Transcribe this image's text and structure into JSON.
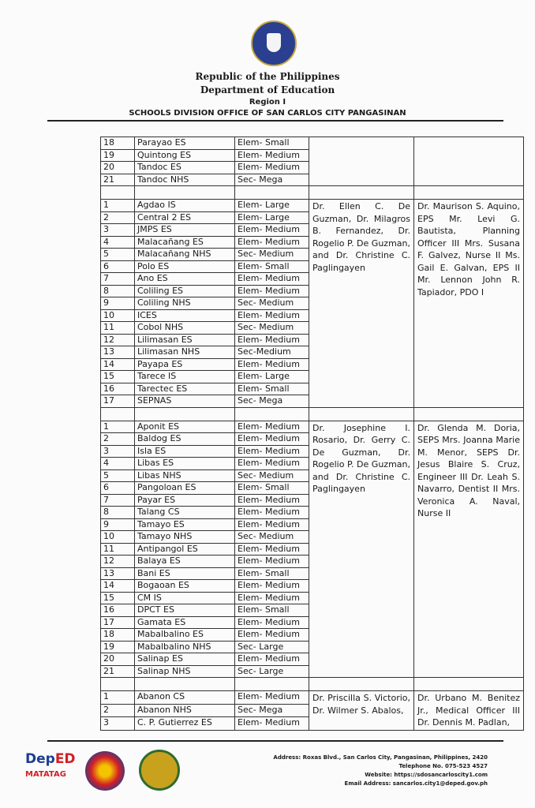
{
  "header": {
    "line1": "Republic of the Philippines",
    "line2": "Department of Education",
    "region": "Region I",
    "office": "SCHOOLS DIVISION OFFICE OF SAN CARLOS CITY PANGASINAN"
  },
  "groups": [
    {
      "rows": [
        [
          "18",
          "Parayao ES",
          "Elem- Small"
        ],
        [
          "19",
          "Quintong ES",
          "Elem- Medium"
        ],
        [
          "20",
          "Tandoc ES",
          "Elem- Medium"
        ],
        [
          "21",
          "Tandoc NHS",
          "Sec- Mega"
        ]
      ],
      "panel": "",
      "team": ""
    },
    {
      "rows": [
        [
          "1",
          "Agdao IS",
          "Elem- Large"
        ],
        [
          "2",
          "Central 2 ES",
          "Elem- Large"
        ],
        [
          "3",
          "JMPS ES",
          "Elem- Medium"
        ],
        [
          "4",
          "Malacañang ES",
          "Elem- Medium"
        ],
        [
          "5",
          "Malacañang NHS",
          "Sec- Medium"
        ],
        [
          "6",
          "Polo ES",
          "Elem- Small"
        ],
        [
          "7",
          "Ano ES",
          "Elem- Medium"
        ],
        [
          "8",
          "Coliling ES",
          "Elem- Medium"
        ],
        [
          "9",
          "Coliling NHS",
          "Sec- Medium"
        ],
        [
          "10",
          "ICES",
          "Elem- Medium"
        ],
        [
          "11",
          "Cobol NHS",
          "Sec- Medium"
        ],
        [
          "12",
          "Lilimasan ES",
          "Elem- Medium"
        ],
        [
          "13",
          "Lilimasan NHS",
          "Sec-Medium"
        ],
        [
          "14",
          "Payapa ES",
          "Elem- Medium"
        ],
        [
          "15",
          "Tarece IS",
          "Elem- Large"
        ],
        [
          "16",
          "Tarectec ES",
          "Elem- Small"
        ],
        [
          "17",
          "SEPNAS",
          "Sec- Mega"
        ]
      ],
      "panel": "Dr. Ellen C. De Guzman, Dr. Milagros B. Fernandez, Dr. Rogelio P. De Guzman, and Dr. Christine C. Paglingayen",
      "team": "Dr. Maurison S. Aquino, EPS Mr. Levi G. Bautista, Planning Officer III Mrs. Susana F. Galvez, Nurse II Ms. Gail E. Galvan, EPS II Mr. Lennon John R. Tapiador, PDO I"
    },
    {
      "rows": [
        [
          "1",
          "Aponit ES",
          "Elem- Medium"
        ],
        [
          "2",
          "Baldog ES",
          "Elem- Medium"
        ],
        [
          "3",
          "Isla ES",
          "Elem- Medium"
        ],
        [
          "4",
          "Libas ES",
          "Elem- Medium"
        ],
        [
          "5",
          "Libas NHS",
          "Sec- Medium"
        ],
        [
          "6",
          "Pangoloan ES",
          "Elem- Small"
        ],
        [
          "7",
          "Payar ES",
          "Elem- Medium"
        ],
        [
          "8",
          "Talang CS",
          "Elem- Medium"
        ],
        [
          "9",
          "Tamayo ES",
          "Elem- Medium"
        ],
        [
          "10",
          "Tamayo NHS",
          "Sec- Medium"
        ],
        [
          "11",
          "Antipangol ES",
          "Elem- Medium"
        ],
        [
          "12",
          "Balaya ES",
          "Elem- Medium"
        ],
        [
          "13",
          "Bani ES",
          "Elem- Small"
        ],
        [
          "14",
          "Bogaoan ES",
          "Elem- Medium"
        ],
        [
          "15",
          "CM IS",
          "Elem- Medium"
        ],
        [
          "16",
          "DPCT ES",
          "Elem- Small"
        ],
        [
          "17",
          "Gamata ES",
          "Elem- Medium"
        ],
        [
          "18",
          "Mabalbalino ES",
          "Elem- Medium"
        ],
        [
          "19",
          "Mabalbalino NHS",
          "Sec- Large"
        ],
        [
          "20",
          "Salinap ES",
          "Elem- Medium"
        ],
        [
          "21",
          "Salinap NHS",
          "Sec- Large"
        ]
      ],
      "panel": "Dr. Josephine I. Rosario, Dr. Gerry C. De Guzman, Dr. Rogelio P. De Guzman, and Dr. Christine C. Paglingayen",
      "team": "Dr. Glenda M. Doria, SEPS Mrs. Joanna Marie M. Menor, SEPS Dr. Jesus Blaire S. Cruz, Engineer III Dr. Leah S. Navarro, Dentist II Mrs. Veronica A. Naval, Nurse II"
    },
    {
      "rows": [
        [
          "1",
          "Abanon CS",
          "Elem- Medium"
        ],
        [
          "2",
          "Abanon NHS",
          "Sec- Mega"
        ],
        [
          "3",
          "C. P. Gutierrez ES",
          "Elem- Medium"
        ]
      ],
      "panel": "Dr. Priscilla S. Victorio, Dr. Wilmer S. Abalos,",
      "team": "Dr. Urbano M. Benitez Jr., Medical Officer III Dr. Dennis M. Padlan,"
    }
  ],
  "footer": {
    "address": "Address: Roxas Blvd., San Carlos City, Pangasinan, Philippines, 2420",
    "telephone": "Telephone No.  075-523 4527",
    "website": "Website: https://sdosancarloscity1.com",
    "email": "Email Address: sancarlos.city1@deped.gov.ph",
    "logos": [
      "DepED MATATAG",
      "BAGONG PILIPINAS",
      "Schools Division seal"
    ]
  }
}
